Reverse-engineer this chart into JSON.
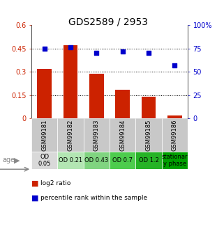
{
  "title": "GDS2589 / 2953",
  "samples": [
    "GSM99181",
    "GSM99182",
    "GSM99183",
    "GSM99184",
    "GSM99185",
    "GSM99186"
  ],
  "log2_ratio": [
    0.32,
    0.47,
    0.285,
    0.185,
    0.14,
    0.02
  ],
  "percentile_rank": [
    75,
    76,
    70,
    72,
    70,
    57
  ],
  "age_labels": [
    "OD\n0.05",
    "OD 0.21",
    "OD 0.43",
    "OD 0.7",
    "OD 1.2",
    "stationar\ny phase"
  ],
  "age_colors": [
    "#d9d9d9",
    "#b3e6b3",
    "#80d480",
    "#4dcc4d",
    "#26b326",
    "#00a000"
  ],
  "bar_color": "#cc2200",
  "dot_color": "#0000cc",
  "left_ylim": [
    0,
    0.6
  ],
  "right_ylim": [
    0,
    100
  ],
  "left_yticks": [
    0,
    0.15,
    0.3,
    0.45,
    0.6
  ],
  "right_yticks": [
    0,
    25,
    50,
    75,
    100
  ],
  "left_ytick_labels": [
    "0",
    "0.15",
    "0.3",
    "0.45",
    "0.6"
  ],
  "right_ytick_labels": [
    "0",
    "25",
    "50",
    "75",
    "100%"
  ],
  "hlines": [
    0.15,
    0.3,
    0.45
  ],
  "legend_bar_label": "log2 ratio",
  "legend_dot_label": "percentile rank within the sample",
  "bar_color_hex": "#cc2200",
  "dot_color_hex": "#0000cc",
  "sample_bg_color": "#c8c8c8",
  "title_fontsize": 10,
  "tick_fontsize": 7,
  "sample_fontsize": 6,
  "age_fontsize": 6,
  "legend_fontsize": 6.5
}
